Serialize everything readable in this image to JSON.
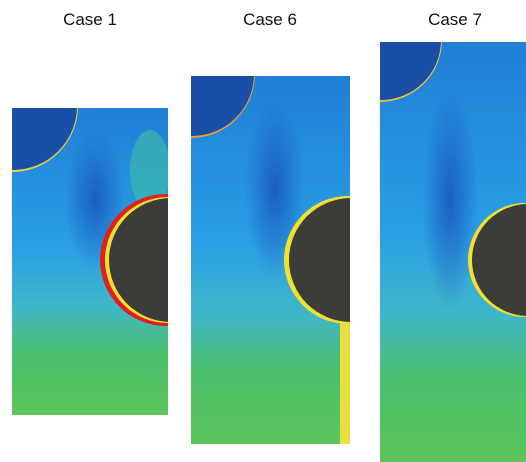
{
  "panels": [
    {
      "label": "Case 1"
    },
    {
      "label": "Case 6"
    },
    {
      "label": "Case 7"
    }
  ]
}
